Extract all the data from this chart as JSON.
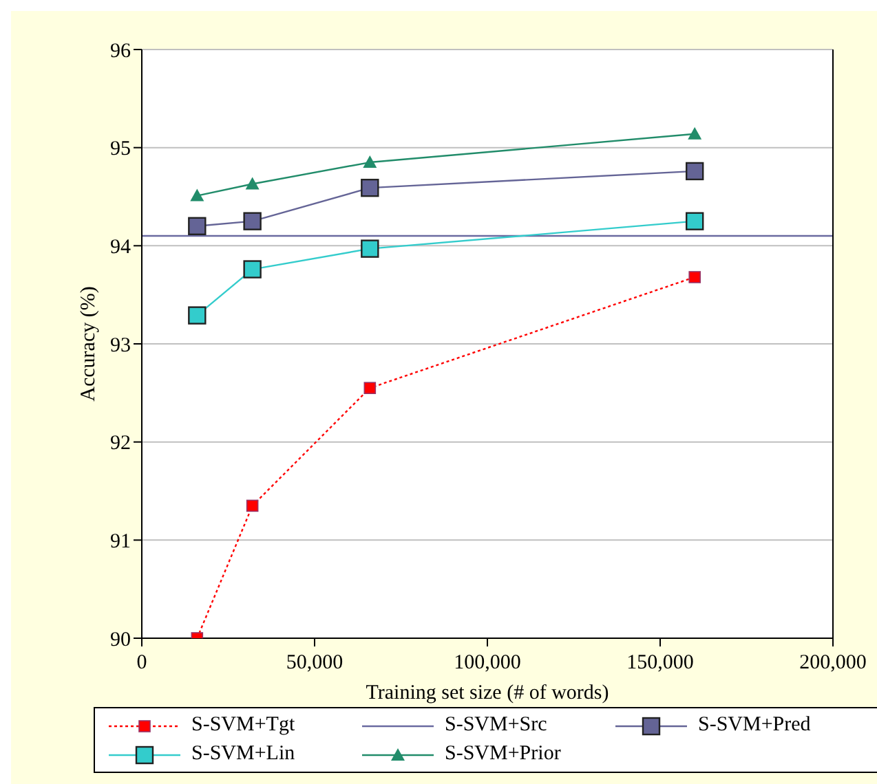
{
  "chart_data": {
    "type": "line",
    "xlabel": "Training set size (# of words)",
    "ylabel": "Accuracy (%)",
    "xlim": [
      0,
      200000
    ],
    "xticks": [
      0,
      {
        "value": 50000,
        "label": "50,000"
      },
      {
        "value": 100000,
        "label": "100,000"
      },
      {
        "value": 150000,
        "label": "150,000"
      },
      {
        "value": 200000,
        "label": "200,000"
      }
    ],
    "ylim": [
      90,
      96
    ],
    "yticks": [
      90,
      91,
      92,
      93,
      94,
      95,
      96
    ],
    "grid": "y",
    "legend": "bottom",
    "series": [
      {
        "name": "S-SVM+Tgt",
        "color": "#ff0000",
        "x": [
          16000,
          32000,
          66000,
          160000
        ],
        "values": [
          90.0,
          91.35,
          92.55,
          93.68
        ],
        "marker": "square",
        "line_style": "dotted"
      },
      {
        "name": "S-SVM+Src",
        "color": "#6a6aa0",
        "x": [
          0,
          200000
        ],
        "values": [
          94.1,
          94.1
        ],
        "marker": "none",
        "line_style": "solid"
      },
      {
        "name": "S-SVM+Pred",
        "color": "#646496",
        "x": [
          16000,
          32000,
          66000,
          160000
        ],
        "values": [
          94.2,
          94.25,
          94.59,
          94.76
        ],
        "marker": "square",
        "line_style": "solid"
      },
      {
        "name": "S-SVM+Lin",
        "color": "#33cccc",
        "x": [
          16000,
          32000,
          66000,
          160000
        ],
        "values": [
          93.29,
          93.76,
          93.97,
          94.25
        ],
        "marker": "square",
        "line_style": "solid"
      },
      {
        "name": "S-SVM+Prior",
        "color": "#218c6a",
        "x": [
          16000,
          32000,
          66000,
          160000
        ],
        "values": [
          94.51,
          94.63,
          94.85,
          95.14
        ],
        "marker": "triangle",
        "line_style": "solid"
      }
    ]
  }
}
